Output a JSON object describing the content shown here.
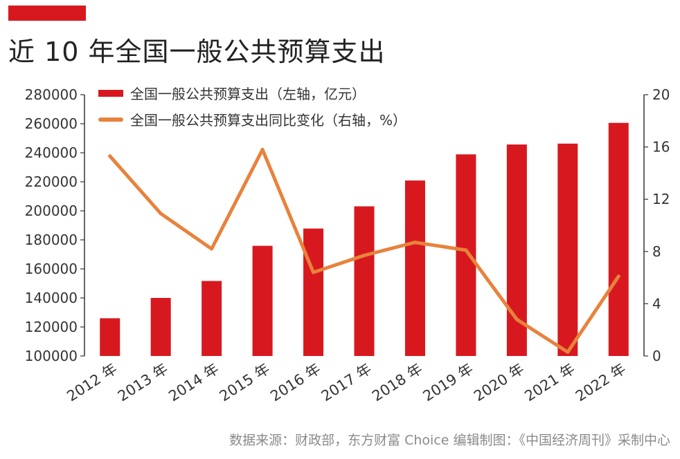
{
  "header": {
    "title": "近 10 年全国一般公共预算支出",
    "accent_color": "#D7191F"
  },
  "chart_data": {
    "type": "bar",
    "categories": [
      "2012 年",
      "2013 年",
      "2014 年",
      "2015 年",
      "2016 年",
      "2017 年",
      "2018 年",
      "2019 年",
      "2020 年",
      "2021 年",
      "2022 年"
    ],
    "series": [
      {
        "name": "全国一般公共预算支出（左轴，亿元）",
        "type": "bar",
        "axis": "left",
        "color": "#D7191F",
        "values": [
          126000,
          140000,
          151700,
          175900,
          187800,
          203100,
          220900,
          238900,
          245700,
          246300,
          260600
        ]
      },
      {
        "name": "全国一般公共预算支出同比变化（右轴，%）",
        "type": "line",
        "axis": "right",
        "color": "#E8823C",
        "values": [
          15.3,
          10.9,
          8.2,
          15.8,
          6.4,
          7.7,
          8.7,
          8.1,
          2.8,
          0.3,
          6.1
        ]
      }
    ],
    "y_left": {
      "ylim": [
        100000,
        280000
      ],
      "ticks": [
        "100000",
        "120000",
        "140000",
        "160000",
        "180000",
        "200000",
        "220000",
        "240000",
        "260000",
        "280000"
      ]
    },
    "y_right": {
      "ylim": [
        0,
        20
      ],
      "ticks": [
        "0",
        "4",
        "8",
        "12",
        "16",
        "20"
      ]
    },
    "legend_position": "top-center",
    "grid": false
  },
  "footer": {
    "source": "数据来源：财政部，东方财富 Choice  编辑制图：《中国经济周刊》采制中心"
  }
}
